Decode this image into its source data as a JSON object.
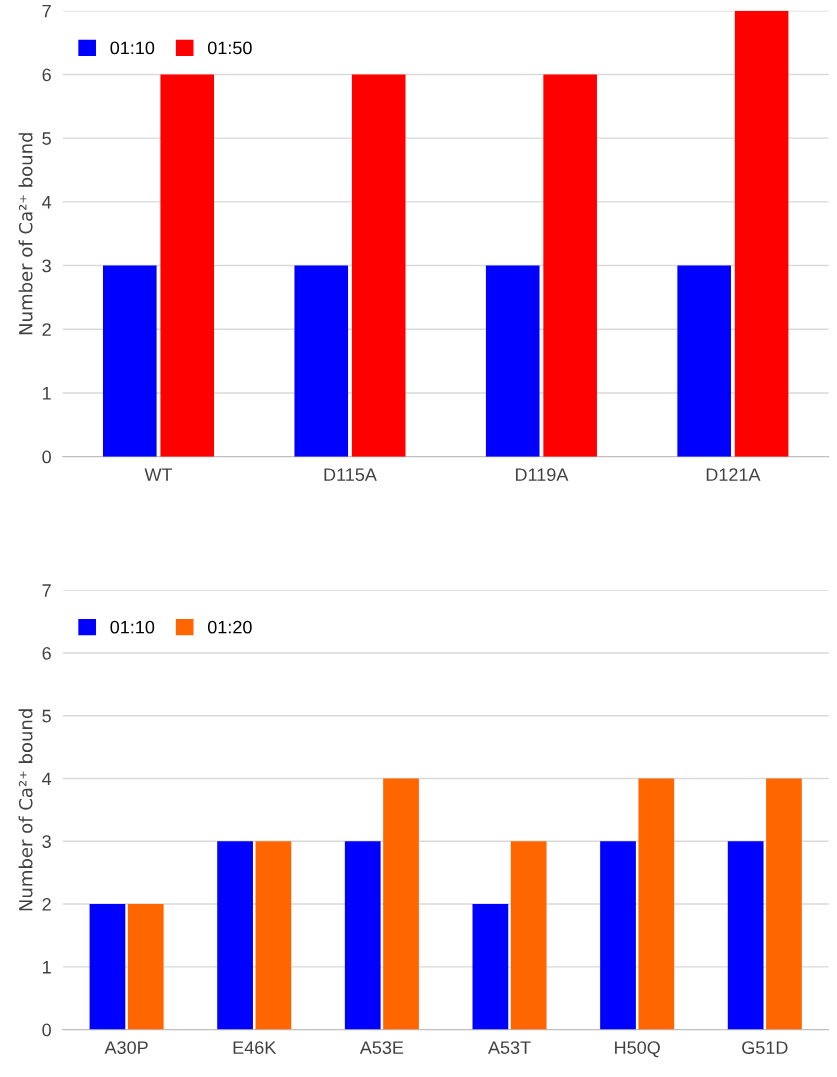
{
  "chart_data": [
    {
      "type": "bar",
      "ylabel": "Number of Ca²⁺ bound",
      "categories": [
        "WT",
        "D115A",
        "D119A",
        "D121A"
      ],
      "series": [
        {
          "name": "01:10",
          "color": "#0000ff",
          "values": [
            3,
            3,
            3,
            3
          ]
        },
        {
          "name": "01:50",
          "color": "#ff0000",
          "values": [
            6,
            6,
            6,
            7
          ]
        }
      ],
      "ylim": [
        0,
        7
      ],
      "yticks": [
        0,
        1,
        2,
        3,
        4,
        5,
        6,
        7
      ],
      "grid": "y",
      "legend": "top left"
    },
    {
      "type": "bar",
      "ylabel": "Number of Ca²⁺ bound",
      "categories": [
        "A30P",
        "E46K",
        "A53E",
        "A53T",
        "H50Q",
        "G51D"
      ],
      "series": [
        {
          "name": "01:10",
          "color": "#0000ff",
          "values": [
            2,
            3,
            3,
            2,
            3,
            3
          ]
        },
        {
          "name": "01:20",
          "color": "#ff6600",
          "values": [
            2,
            3,
            4,
            3,
            4,
            4
          ]
        }
      ],
      "ylim": [
        0,
        7
      ],
      "yticks": [
        0,
        1,
        2,
        3,
        4,
        5,
        6,
        7
      ],
      "grid": "y",
      "legend": "top left"
    }
  ]
}
